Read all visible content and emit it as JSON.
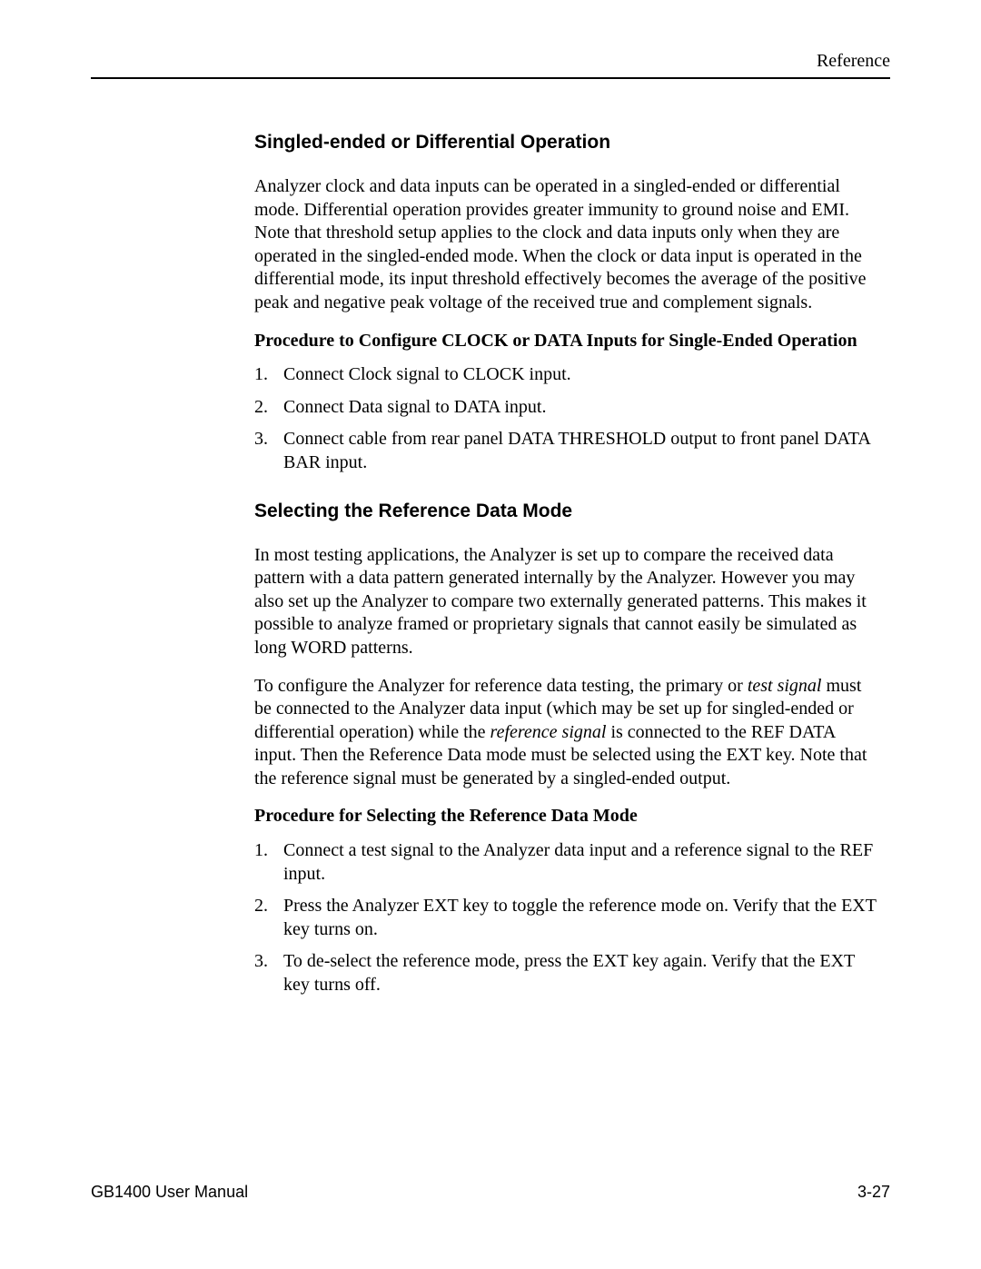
{
  "header": {
    "label": "Reference"
  },
  "section1": {
    "heading": "Singled-ended or Differential Operation",
    "para1": "Analyzer clock and data inputs can be operated in a singled-ended or differential mode. Differential operation provides greater immunity to ground noise and EMI. Note that threshold setup applies to the clock and data inputs only when they are operated in the singled-ended mode. When the clock or data input is operated in the differential mode, its input threshold effectively becomes the average of the positive peak and negative peak voltage of the received true and complement signals.",
    "procHeading": "Procedure to Configure CLOCK or DATA Inputs for Single-Ended Operation",
    "steps": [
      "Connect Clock signal to CLOCK input.",
      "Connect Data signal to DATA input.",
      "Connect cable from rear panel DATA THRESHOLD output to front panel DATA BAR input."
    ]
  },
  "section2": {
    "heading": "Selecting the Reference Data Mode",
    "para1": "In most testing applications, the Analyzer is set up to compare the received data pattern with a data pattern generated internally by the Analyzer. However you may also set up the Analyzer to compare two externally generated patterns. This makes it possible to analyze framed or proprietary signals that cannot easily be simulated as long WORD patterns.",
    "para2_a": "To configure the Analyzer for reference data testing, the primary or ",
    "para2_it1": "test signal",
    "para2_b": " must be connected to the Analyzer data input (which may be set up for singled-ended or differential operation) while the ",
    "para2_it2": "reference signal",
    "para2_c": " is connected to the REF DATA input. Then the Reference Data mode must be selected using the EXT key. Note that the reference signal must be generated by a singled-ended output.",
    "procHeading": "Procedure for Selecting the Reference Data Mode",
    "steps": [
      "Connect a test signal to the Analyzer data input and a reference signal to the REF input.",
      "Press the Analyzer EXT key to toggle the reference mode on. Verify that the EXT key turns on.",
      "To de-select the reference mode, press the EXT key again. Verify that the EXT key turns off."
    ]
  },
  "footer": {
    "left": "GB1400 User Manual",
    "right": "3-27"
  }
}
